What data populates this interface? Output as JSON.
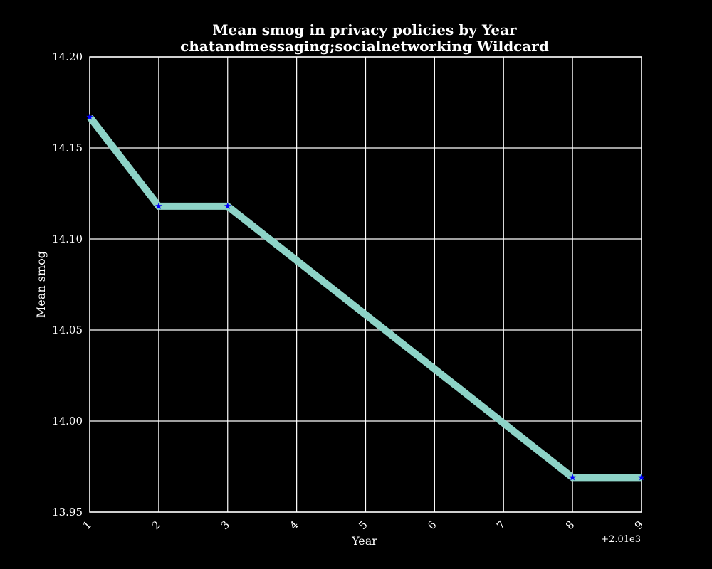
{
  "chart_data": {
    "type": "line",
    "title": "Mean smog in privacy policies by Year",
    "subtitle": "chatandmessaging;socialnetworking Wildcard",
    "xlabel": "Year",
    "ylabel": "Mean smog",
    "x_offset_label": "+2.01e3",
    "x": [
      2011,
      2012,
      2013,
      2018,
      2019
    ],
    "series": [
      {
        "values": [
          14.167,
          14.118,
          14.118,
          13.969,
          13.969
        ]
      }
    ],
    "xlim": [
      2011,
      2019
    ],
    "ylim": [
      13.95,
      14.2
    ],
    "xticks": [
      2011,
      2012,
      2013,
      2014,
      2015,
      2016,
      2017,
      2018,
      2019
    ],
    "xtick_labels": [
      "1",
      "2",
      "3",
      "4",
      "5",
      "6",
      "7",
      "8",
      "9"
    ],
    "yticks": [
      13.95,
      14.0,
      14.05,
      14.1,
      14.15,
      14.2
    ],
    "ytick_labels": [
      "13.95",
      "14.00",
      "14.05",
      "14.10",
      "14.15",
      "14.20"
    ],
    "grid": true,
    "line_color": "#8dd3c7",
    "marker_color": "#0000ff",
    "marker": "star",
    "background": "#000000",
    "axis_color": "#ffffff"
  }
}
